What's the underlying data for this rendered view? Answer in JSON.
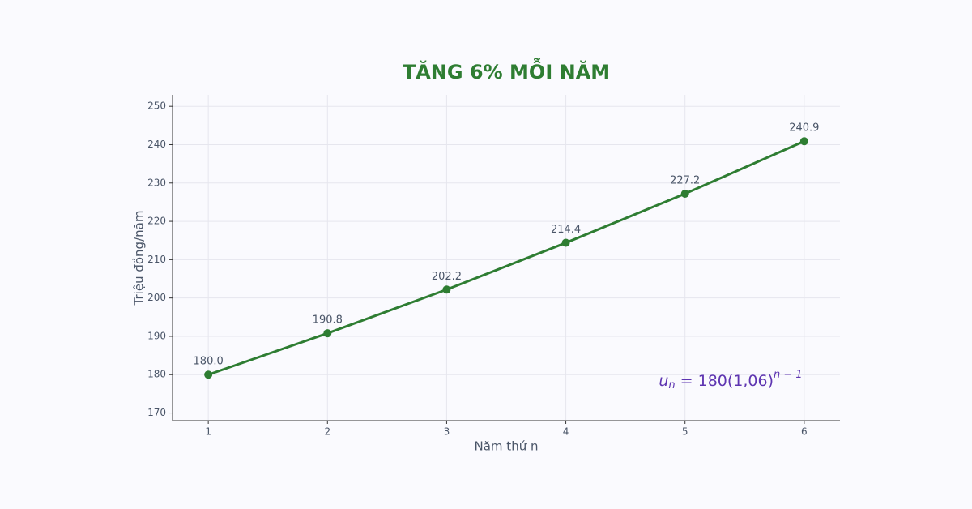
{
  "chart_data": {
    "type": "line",
    "title": "TĂNG 6% MỖI NĂM",
    "x_label": "Năm thứ n",
    "y_label": "Triệu đồng/năm",
    "x": [
      1,
      2,
      3,
      4,
      5,
      6
    ],
    "series": [
      {
        "name": "Triệu đồng/năm",
        "color": "#2e7d32",
        "values": [
          180.0,
          190.8,
          202.2,
          214.4,
          227.2,
          240.9
        ],
        "value_labels": [
          "180.0",
          "190.8",
          "202.2",
          "214.4",
          "227.2",
          "240.9"
        ]
      }
    ],
    "xlim": [
      0.7,
      6.3
    ],
    "xticks": [
      1,
      2,
      3,
      4,
      5,
      6
    ],
    "ylim": [
      168,
      253
    ],
    "yticks": [
      170,
      180,
      190,
      200,
      210,
      220,
      230,
      240,
      250
    ],
    "grid": true,
    "annotation": {
      "base": "u",
      "sub": "n",
      "main": " = 180(1,06)",
      "sup": "n − 1",
      "color": "#5e35b1"
    }
  }
}
